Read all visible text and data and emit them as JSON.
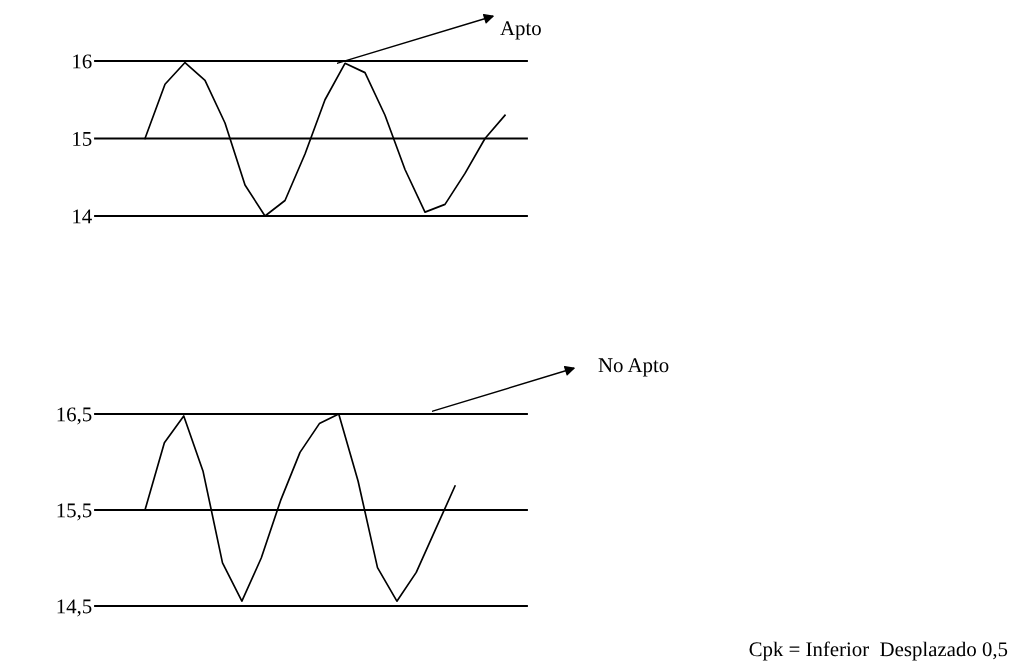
{
  "chart_data": [
    {
      "type": "line",
      "categories": [
        null,
        null,
        null,
        null,
        null,
        null,
        null,
        null,
        null,
        null,
        null,
        null,
        null,
        null,
        null,
        null,
        null,
        null,
        null
      ],
      "series": [
        {
          "color": "#000000",
          "values": [
            15.0,
            15.7,
            15.98,
            15.75,
            15.2,
            14.4,
            14.0,
            14.2,
            14.8,
            15.5,
            15.97,
            15.85,
            15.3,
            14.6,
            14.05,
            14.15,
            14.55,
            15.0,
            15.3
          ]
        }
      ],
      "ylim": [
        14,
        16
      ],
      "yticks": [
        14,
        15,
        16
      ],
      "tick_labels": "y",
      "grid": "y",
      "legend": false,
      "annotations": [
        "Apto"
      ]
    },
    {
      "type": "line",
      "categories": [
        null,
        null,
        null,
        null,
        null,
        null,
        null,
        null,
        null,
        null,
        null,
        null,
        null,
        null,
        null,
        null,
        null
      ],
      "series": [
        {
          "color": "#000000",
          "values": [
            15.5,
            16.2,
            16.48,
            15.9,
            14.95,
            14.55,
            15.0,
            15.6,
            16.1,
            16.4,
            16.5,
            15.8,
            14.9,
            14.55,
            14.85,
            15.3,
            15.75
          ]
        }
      ],
      "ylim": [
        14.5,
        16.5
      ],
      "yticks": [
        {
          "value": 14.5,
          "label": "14,5"
        },
        {
          "value": 15.5,
          "label": "15,5"
        },
        {
          "value": 16.5,
          "label": "16,5"
        }
      ],
      "tick_labels": "y",
      "grid": "y",
      "legend": false,
      "annotations": [
        "No Apto",
        "Cpk = Inferior  Desplazado 0,5"
      ]
    }
  ]
}
